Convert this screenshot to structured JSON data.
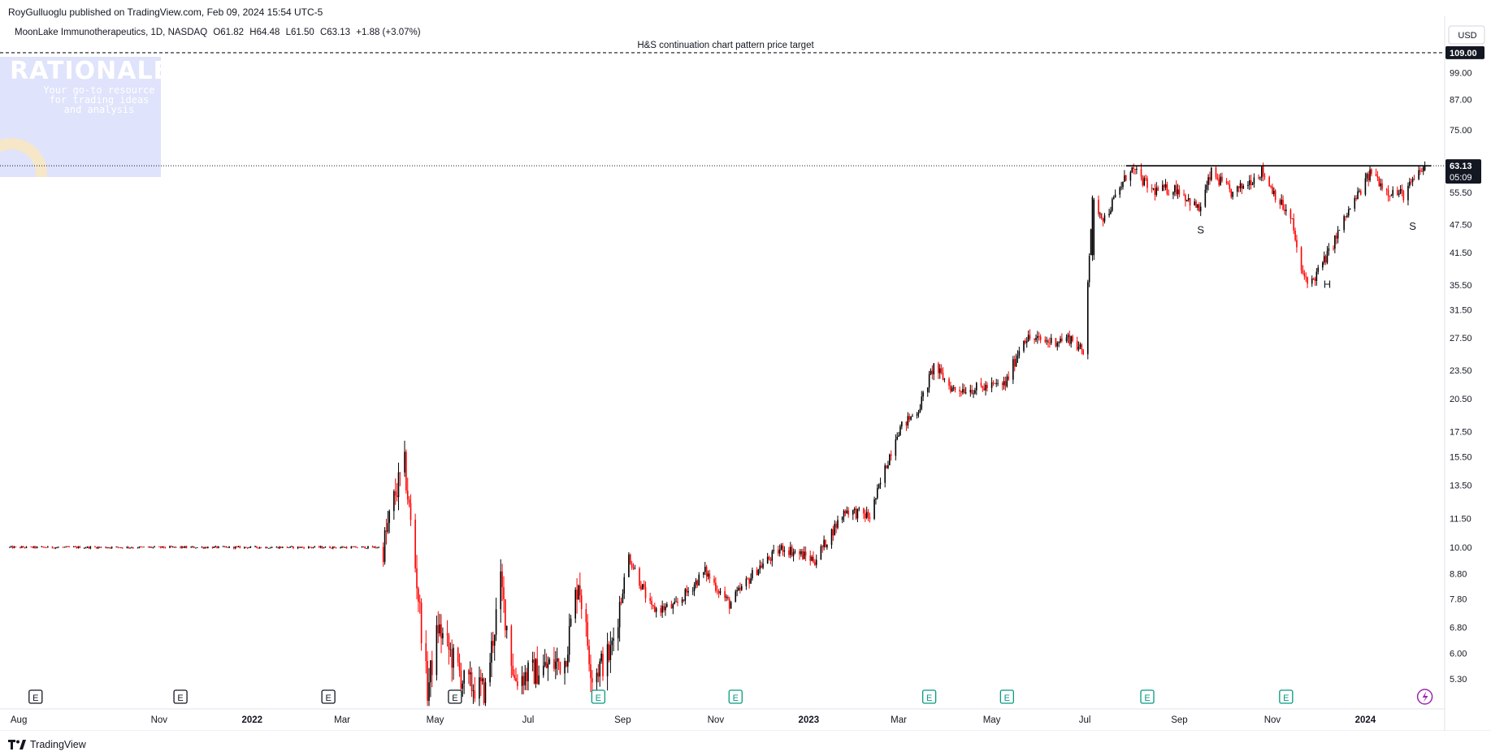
{
  "header": {
    "published_text": "RoyGulluoglu published on TradingView.com, Feb 09, 2024 15:54 UTC-5"
  },
  "legend": {
    "symbol": "MoonLake Immunotherapeutics, 1D, NASDAQ",
    "open": "O61.82",
    "high": "H64.48",
    "low": "L61.50",
    "close": "C63.13",
    "change": "+1.88 (+3.07%)"
  },
  "watermark": {
    "title": "RATIONALE",
    "subtitle_lines": [
      "Your go-to resource",
      "for trading ideas",
      "and analysis"
    ]
  },
  "footer": {
    "brand": "TradingView"
  },
  "colors": {
    "up": "#000000",
    "down": "#ff0000",
    "axis_text": "#131722",
    "earnings": "#089981"
  },
  "chart_data": {
    "type": "candlestick",
    "currency_label": "USD",
    "scale": "log",
    "y_range": [
      4.6,
      125
    ],
    "y_ticks": [
      "109.00",
      "99.00",
      "87.00",
      "75.00",
      "63.13",
      "55.50",
      "47.50",
      "41.50",
      "35.50",
      "31.50",
      "27.50",
      "23.50",
      "20.50",
      "17.50",
      "15.50",
      "13.50",
      "11.50",
      "10.00",
      "8.80",
      "7.80",
      "6.80",
      "6.00",
      "5.30"
    ],
    "last_price_label": "63.13",
    "countdown_label": "05:09",
    "target_price_label": "109.00",
    "x_ticks": [
      {
        "label": "Aug",
        "date": "2021-08-01",
        "bold": false
      },
      {
        "label": "Nov",
        "date": "2021-11-01",
        "bold": false
      },
      {
        "label": "2022",
        "date": "2022-01-01",
        "bold": true
      },
      {
        "label": "Mar",
        "date": "2022-03-01",
        "bold": false
      },
      {
        "label": "May",
        "date": "2022-05-01",
        "bold": false
      },
      {
        "label": "Jul",
        "date": "2022-07-01",
        "bold": false
      },
      {
        "label": "Sep",
        "date": "2022-09-01",
        "bold": false
      },
      {
        "label": "Nov",
        "date": "2022-11-01",
        "bold": false
      },
      {
        "label": "2023",
        "date": "2023-01-01",
        "bold": true
      },
      {
        "label": "Mar",
        "date": "2023-03-01",
        "bold": false
      },
      {
        "label": "May",
        "date": "2023-05-01",
        "bold": false
      },
      {
        "label": "Jul",
        "date": "2023-07-01",
        "bold": false
      },
      {
        "label": "Sep",
        "date": "2023-09-01",
        "bold": false
      },
      {
        "label": "Nov",
        "date": "2023-11-01",
        "bold": false
      },
      {
        "label": "2024",
        "date": "2024-01-01",
        "bold": true
      }
    ],
    "price_path": [
      [
        "2021-07-25",
        10.0
      ],
      [
        "2022-03-28",
        10.0
      ],
      [
        "2022-04-05",
        13.0
      ],
      [
        "2022-04-11",
        14.8
      ],
      [
        "2022-04-19",
        8.5
      ],
      [
        "2022-04-26",
        5.0
      ],
      [
        "2022-05-03",
        6.8
      ],
      [
        "2022-05-20",
        5.2
      ],
      [
        "2022-06-03",
        5.0
      ],
      [
        "2022-06-13",
        8.4
      ],
      [
        "2022-06-22",
        5.3
      ],
      [
        "2022-07-06",
        5.5
      ],
      [
        "2022-07-25",
        5.8
      ],
      [
        "2022-08-03",
        8.6
      ],
      [
        "2022-08-12",
        5.4
      ],
      [
        "2022-08-24",
        6.0
      ],
      [
        "2022-09-05",
        9.6
      ],
      [
        "2022-09-20",
        7.4
      ],
      [
        "2022-10-05",
        7.5
      ],
      [
        "2022-10-25",
        8.9
      ],
      [
        "2022-11-10",
        7.6
      ],
      [
        "2022-11-28",
        9.0
      ],
      [
        "2022-12-15",
        10.0
      ],
      [
        "2023-01-05",
        9.4
      ],
      [
        "2023-01-25",
        12.0
      ],
      [
        "2023-02-10",
        11.6
      ],
      [
        "2023-02-28",
        17.5
      ],
      [
        "2023-03-14",
        19.5
      ],
      [
        "2023-03-24",
        24.0
      ],
      [
        "2023-04-05",
        21.5
      ],
      [
        "2023-04-20",
        21.5
      ],
      [
        "2023-05-10",
        22.0
      ],
      [
        "2023-05-22",
        27.5
      ],
      [
        "2023-06-08",
        27.0
      ],
      [
        "2023-06-22",
        27.5
      ],
      [
        "2023-06-30",
        25.5
      ],
      [
        "2023-07-06",
        53.0
      ],
      [
        "2023-07-14",
        49.0
      ],
      [
        "2023-07-31",
        62.5
      ],
      [
        "2023-08-14",
        56.0
      ],
      [
        "2023-08-31",
        56.5
      ],
      [
        "2023-09-14",
        51.0
      ],
      [
        "2023-09-22",
        61.0
      ],
      [
        "2023-10-06",
        55.0
      ],
      [
        "2023-10-25",
        61.5
      ],
      [
        "2023-11-14",
        48.0
      ],
      [
        "2023-11-20",
        37.5
      ],
      [
        "2023-11-27",
        36.0
      ],
      [
        "2023-12-08",
        41.5
      ],
      [
        "2023-12-20",
        50.0
      ],
      [
        "2024-01-05",
        61.5
      ],
      [
        "2024-01-15",
        56.0
      ],
      [
        "2024-01-26",
        55.0
      ],
      [
        "2024-02-09",
        63.13
      ]
    ],
    "neckline": {
      "price": 63.13,
      "from": "2023-07-28",
      "to": "2024-02-13"
    },
    "target_line": {
      "price": 109.0,
      "label": "H&S continuation chart pattern price target"
    },
    "pattern_labels": [
      {
        "text": "S",
        "date": "2023-09-15",
        "price": 45.5
      },
      {
        "text": "H",
        "date": "2023-12-07",
        "price": 35.0
      },
      {
        "text": "S",
        "date": "2024-02-01",
        "price": 46.3
      }
    ],
    "events": [
      {
        "kind": "E",
        "date": "2021-08-12",
        "color": "dark"
      },
      {
        "kind": "E",
        "date": "2021-11-15",
        "color": "dark"
      },
      {
        "kind": "E",
        "date": "2022-02-20",
        "color": "dark"
      },
      {
        "kind": "E",
        "date": "2022-05-14",
        "color": "dark"
      },
      {
        "kind": "E",
        "date": "2022-08-16",
        "color": "green"
      },
      {
        "kind": "E",
        "date": "2022-11-14",
        "color": "green"
      },
      {
        "kind": "E",
        "date": "2023-03-21",
        "color": "green"
      },
      {
        "kind": "E",
        "date": "2023-05-11",
        "color": "green"
      },
      {
        "kind": "E",
        "date": "2023-08-11",
        "color": "green"
      },
      {
        "kind": "E",
        "date": "2023-11-10",
        "color": "green"
      },
      {
        "kind": "flash",
        "date": "2024-02-09",
        "color": "purple"
      }
    ]
  }
}
